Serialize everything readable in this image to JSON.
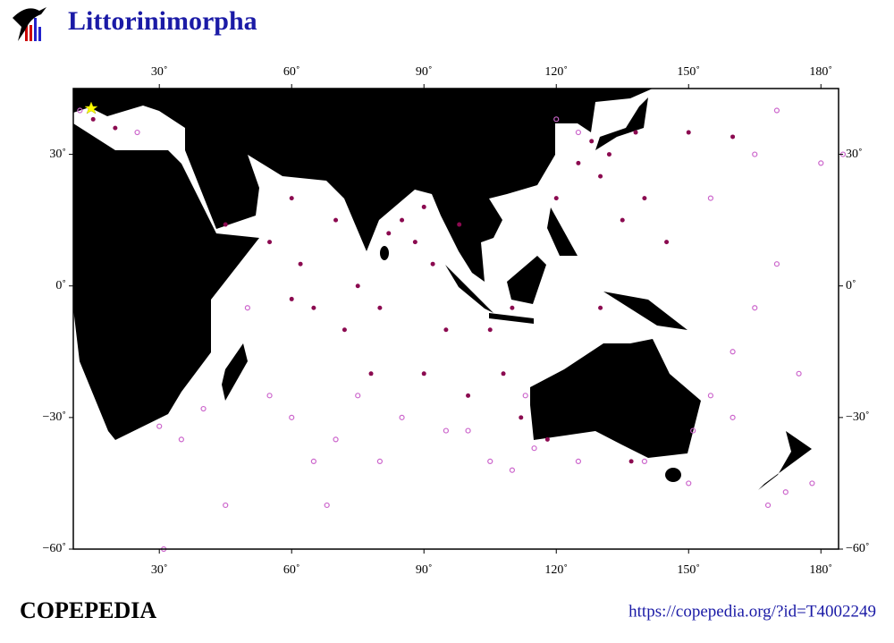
{
  "header": {
    "title": "Littorinimorpha"
  },
  "chart_data": {
    "type": "map",
    "xlim": [
      10.5,
      184
    ],
    "ylim": [
      -60,
      45
    ],
    "xticks": [
      {
        "value": 30,
        "label": "30˚"
      },
      {
        "value": 60,
        "label": "60˚"
      },
      {
        "value": 90,
        "label": "90˚"
      },
      {
        "value": 120,
        "label": "120˚"
      },
      {
        "value": 150,
        "label": "150˚"
      },
      {
        "value": 180,
        "label": "180˚"
      }
    ],
    "yticks": [
      {
        "value": 30,
        "label": "30˚"
      },
      {
        "value": 0,
        "label": "0˚"
      },
      {
        "value": -30,
        "label": "−30˚"
      },
      {
        "value": -60,
        "label": "−60˚"
      }
    ],
    "filled_color": "#8b0a50",
    "open_color": "#cc66cc",
    "filled_points": [
      [
        15,
        38
      ],
      [
        20,
        36
      ],
      [
        45,
        14
      ],
      [
        55,
        10
      ],
      [
        60,
        20
      ],
      [
        62,
        5
      ],
      [
        65,
        -5
      ],
      [
        70,
        15
      ],
      [
        72,
        -10
      ],
      [
        75,
        0
      ],
      [
        78,
        -20
      ],
      [
        82,
        12
      ],
      [
        85,
        15
      ],
      [
        88,
        10
      ],
      [
        90,
        18
      ],
      [
        92,
        5
      ],
      [
        95,
        -10
      ],
      [
        98,
        14
      ],
      [
        100,
        -25
      ],
      [
        105,
        -10
      ],
      [
        108,
        -20
      ],
      [
        112,
        -30
      ],
      [
        120,
        20
      ],
      [
        125,
        28
      ],
      [
        128,
        33
      ],
      [
        130,
        25
      ],
      [
        132,
        30
      ],
      [
        135,
        15
      ],
      [
        138,
        35
      ],
      [
        140,
        20
      ],
      [
        145,
        10
      ],
      [
        150,
        35
      ],
      [
        160,
        34
      ],
      [
        130,
        -5
      ],
      [
        60,
        -3
      ],
      [
        80,
        -5
      ],
      [
        90,
        -20
      ],
      [
        110,
        -5
      ],
      [
        118,
        -35
      ],
      [
        137,
        -40
      ]
    ],
    "open_points": [
      [
        12,
        40
      ],
      [
        25,
        35
      ],
      [
        30,
        -32
      ],
      [
        35,
        -35
      ],
      [
        40,
        -28
      ],
      [
        50,
        -5
      ],
      [
        55,
        -25
      ],
      [
        60,
        -30
      ],
      [
        65,
        -40
      ],
      [
        70,
        -35
      ],
      [
        75,
        -25
      ],
      [
        85,
        -30
      ],
      [
        95,
        -33
      ],
      [
        100,
        -33
      ],
      [
        105,
        -40
      ],
      [
        110,
        -42
      ],
      [
        115,
        -37
      ],
      [
        125,
        -40
      ],
      [
        140,
        -40
      ],
      [
        150,
        -45
      ],
      [
        155,
        -25
      ],
      [
        160,
        -15
      ],
      [
        165,
        -5
      ],
      [
        170,
        5
      ],
      [
        175,
        -20
      ],
      [
        180,
        28
      ],
      [
        178,
        -45
      ],
      [
        172,
        -47
      ],
      [
        168,
        -50
      ],
      [
        160,
        -30
      ],
      [
        155,
        20
      ],
      [
        165,
        30
      ],
      [
        170,
        40
      ],
      [
        185,
        30
      ],
      [
        120,
        38
      ],
      [
        125,
        35
      ],
      [
        113,
        -25
      ],
      [
        151,
        -33
      ],
      [
        80,
        -40
      ],
      [
        45,
        -50
      ],
      [
        31,
        -60
      ],
      [
        68,
        -50
      ]
    ]
  },
  "footer": {
    "brand": "COPEPEDIA",
    "url": "https://copepedia.org/?id=T4002249"
  }
}
